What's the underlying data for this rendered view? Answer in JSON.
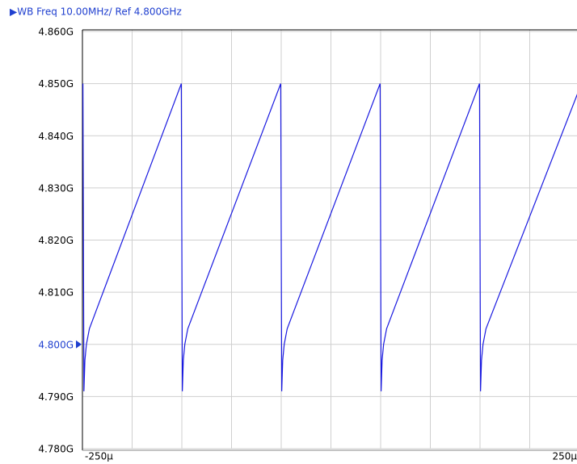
{
  "chart_data": {
    "type": "line",
    "title": "▶WB Freq 10.00MHz/ Ref 4.800GHz",
    "title_color": "#1f3fcf",
    "xlim": [
      -250,
      250
    ],
    "xticks": [
      {
        "value": -250,
        "label": "-250µ"
      },
      -200,
      -150,
      -100,
      -50,
      0,
      50,
      100,
      150,
      200,
      {
        "value": 250,
        "label": "250µ"
      }
    ],
    "ylim": [
      4.78,
      4.86
    ],
    "yticks": [
      {
        "value": 4.78,
        "label": "4.780G"
      },
      {
        "value": 4.79,
        "label": "4.790G"
      },
      {
        "value": 4.8,
        "label": "4.800G"
      },
      {
        "value": 4.81,
        "label": "4.810G"
      },
      {
        "value": 4.82,
        "label": "4.820G"
      },
      {
        "value": 4.83,
        "label": "4.830G"
      },
      {
        "value": 4.84,
        "label": "4.840G"
      },
      {
        "value": 4.85,
        "label": "4.850G"
      },
      {
        "value": 4.86,
        "label": "4.860G"
      }
    ],
    "grid": true,
    "reference": {
      "value": 4.8,
      "color": "#1f3fcf"
    },
    "series": [
      {
        "color": "#1a1ae0",
        "x": [
          -249.5,
          -248.5,
          -247.5,
          -246,
          -243,
          -150.5,
          -149.5,
          -148.5,
          -147,
          -144,
          -50.5,
          -49.5,
          -48.5,
          -47,
          -44,
          49.5,
          50.5,
          51.5,
          53,
          56,
          149.5,
          150.5,
          151.5,
          153,
          156,
          250
        ],
        "values": [
          4.85,
          4.791,
          4.797,
          4.8,
          4.803,
          4.85,
          4.791,
          4.797,
          4.8,
          4.803,
          4.85,
          4.791,
          4.797,
          4.8,
          4.803,
          4.85,
          4.791,
          4.797,
          4.8,
          4.803,
          4.85,
          4.791,
          4.797,
          4.8,
          4.803,
          4.849
        ]
      }
    ]
  }
}
